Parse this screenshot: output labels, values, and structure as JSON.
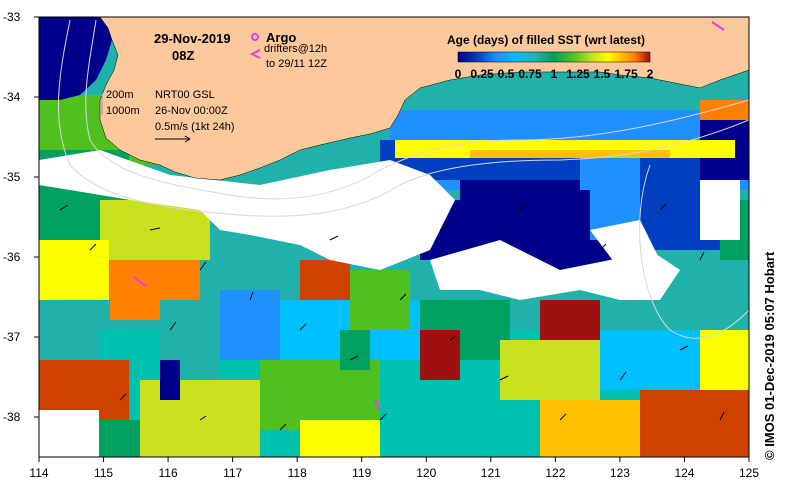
{
  "title": {
    "date": "29-Nov-2019",
    "time": "08Z"
  },
  "legend_argo": {
    "argo_label": "Argo",
    "drifters_label": "drifters@12h",
    "drifters_to_label": "to 29/11 12Z",
    "argo_color": "#e040e0",
    "drifter_color": "#e040e0"
  },
  "annotations": {
    "contour_200": "200m",
    "contour_1000": "1000m",
    "product": "NRT00 GSL",
    "product_time": "26-Nov 00:00Z",
    "scale_vector": "0.5m/s (1kt 24h)"
  },
  "colorbar": {
    "title": "Age (days) of filled SST (wrt latest)",
    "tick_labels": [
      "0",
      "0.25",
      "0.5",
      "0.75",
      "1",
      "1.25",
      "1.5",
      "1.75",
      "2"
    ],
    "tick_values": [
      0,
      0.25,
      0.5,
      0.75,
      1,
      1.25,
      1.5,
      1.75,
      2
    ],
    "colors": [
      "#00008b",
      "#0040c0",
      "#1e90ff",
      "#00bfff",
      "#20b2aa",
      "#00a060",
      "#50c020",
      "#c8e020",
      "#ffff00",
      "#ffc000",
      "#ff8000",
      "#d04000",
      "#a01010"
    ]
  },
  "axes": {
    "x_ticks": [
      "114",
      "115",
      "116",
      "117",
      "118",
      "119",
      "120",
      "121",
      "122",
      "123",
      "124",
      "125"
    ],
    "y_ticks": [
      "-33",
      "-34",
      "-35",
      "-36",
      "-37",
      "-38"
    ],
    "x_range": [
      114,
      125
    ],
    "y_range": [
      -38.5,
      -33
    ]
  },
  "map_colors": {
    "land": "#fcc89c",
    "no_data": "#ffffff",
    "contour": "#d0d0d0"
  },
  "credit": "© IMOS 01-Dec-2019 05:07 Hobart"
}
